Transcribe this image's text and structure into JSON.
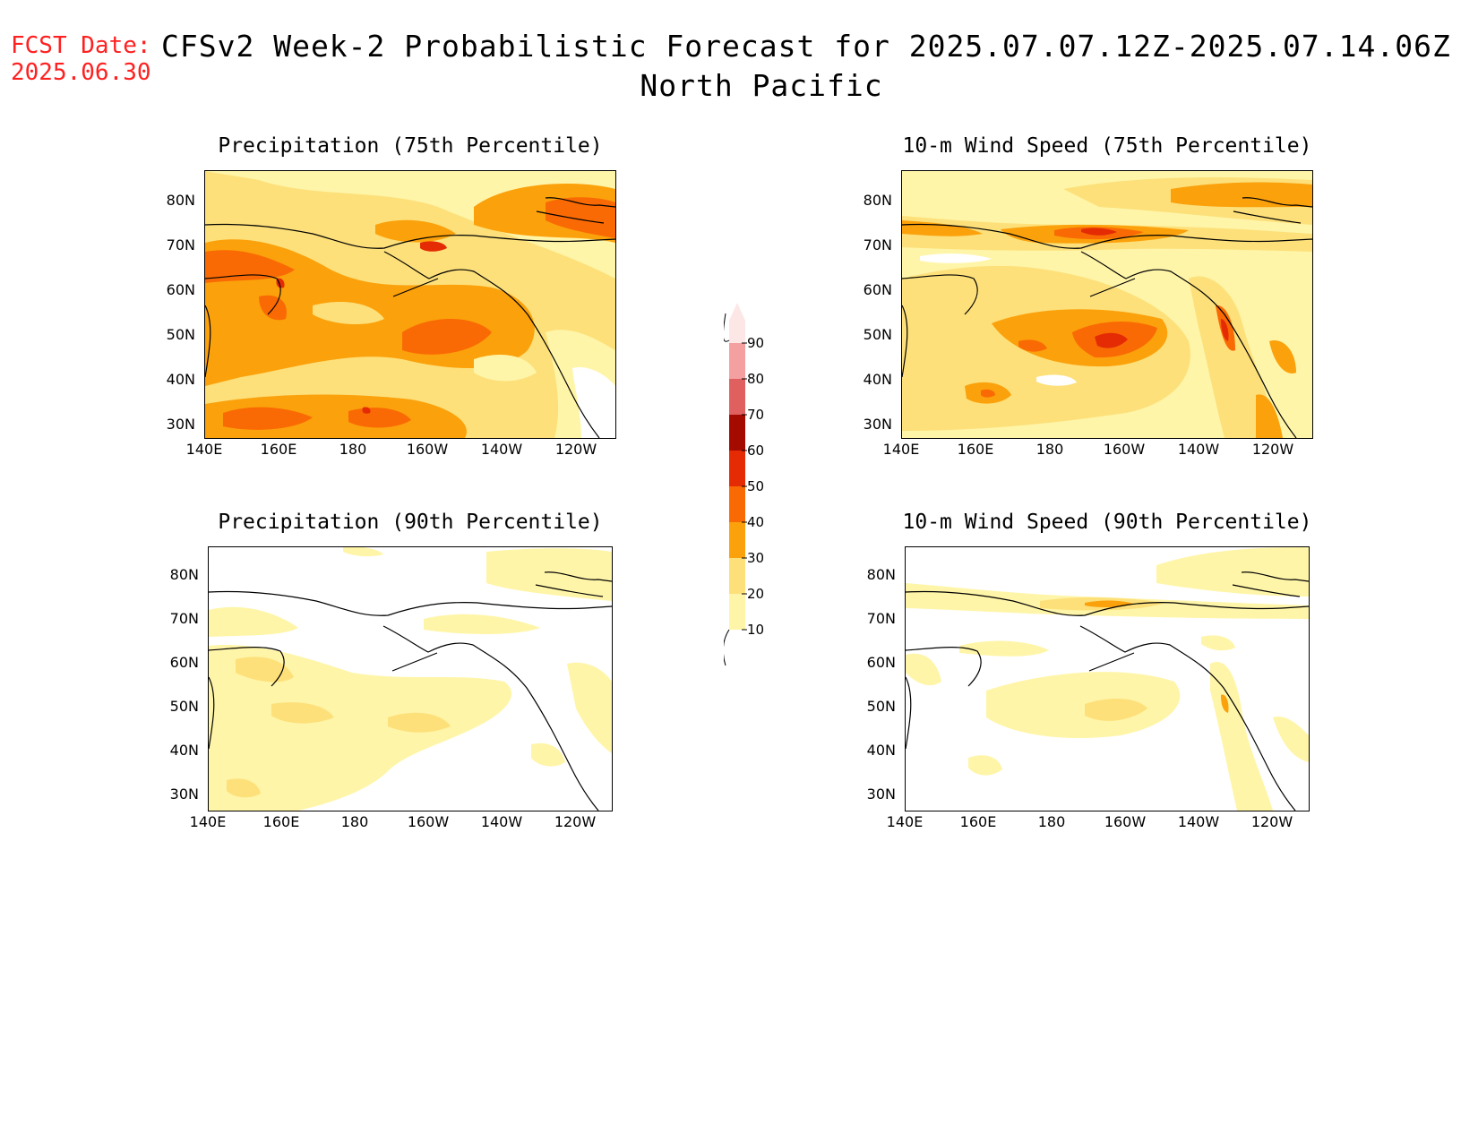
{
  "header": {
    "fcst_label": "FCST Date:",
    "fcst_date": "2025.06.30",
    "title_line1": "CFSv2 Week-2 Probabilistic Forecast for 2025.07.07.12Z-2025.07.14.06Z",
    "title_line2": "North Pacific"
  },
  "axes": {
    "lat_ticks": [
      "80N",
      "70N",
      "60N",
      "50N",
      "40N",
      "30N"
    ],
    "lon_ticks": [
      "140E",
      "160E",
      "180",
      "160W",
      "140W",
      "120W"
    ]
  },
  "panels": [
    {
      "id": "precip-75",
      "title": "Precipitation (75th Percentile)"
    },
    {
      "id": "wind-75",
      "title": "10-m Wind Speed (75th Percentile)"
    },
    {
      "id": "precip-90",
      "title": "Precipitation (90th Percentile)"
    },
    {
      "id": "wind-90",
      "title": "10-m Wind Speed (90th Percentile)"
    }
  ],
  "colorbar": {
    "levels": [
      "10",
      "20",
      "30",
      "40",
      "50",
      "60",
      "70",
      "80",
      "90"
    ],
    "colors": [
      "#fff5a8",
      "#fde07a",
      "#fba10b",
      "#fa6a04",
      "#e42b04",
      "#a50a00",
      "#e06060",
      "#f4a0a0",
      "#fde6e6"
    ]
  }
}
